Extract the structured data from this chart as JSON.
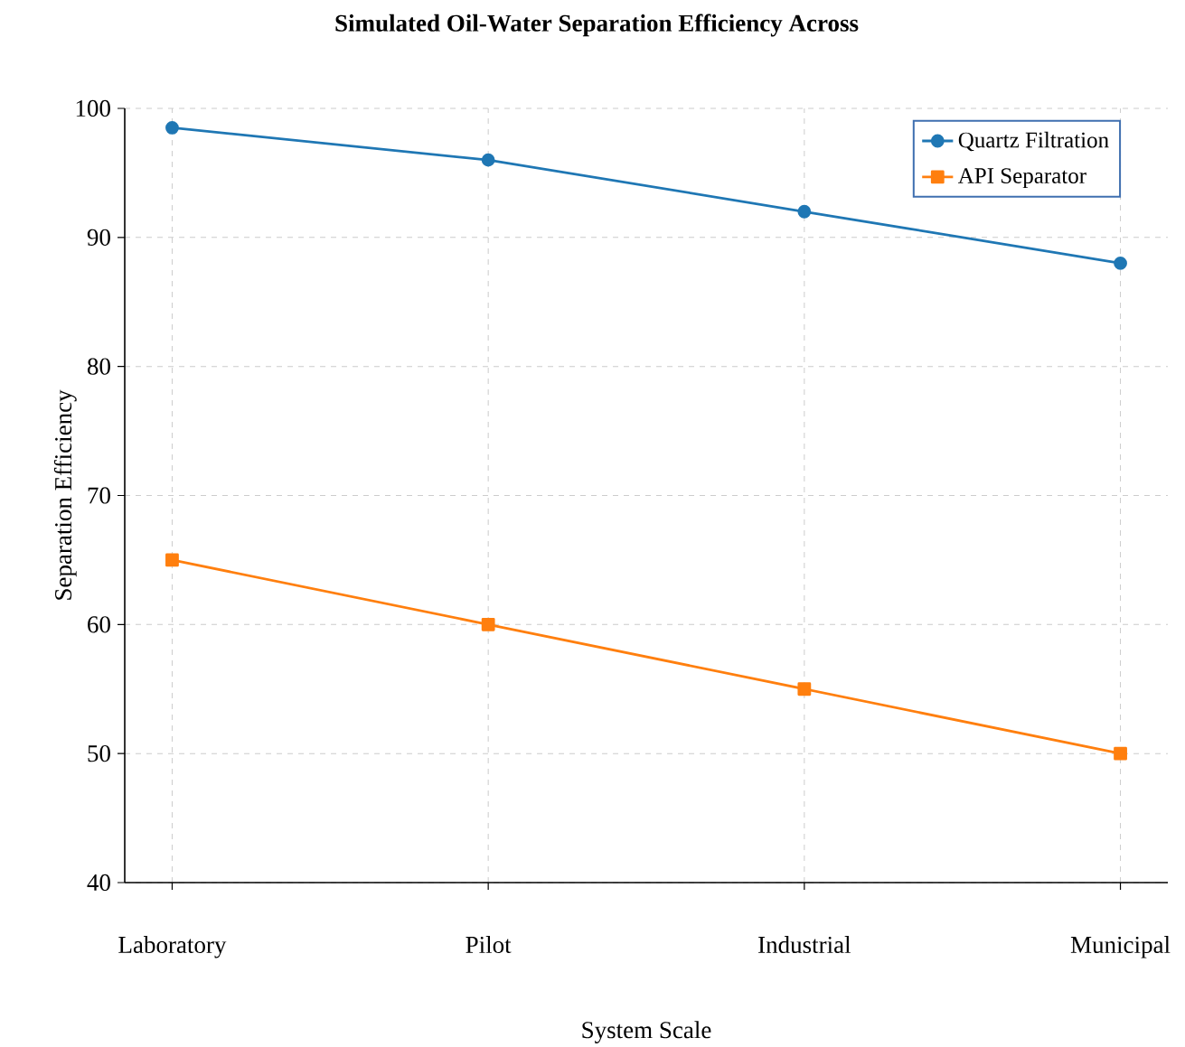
{
  "chart_data": {
    "type": "line",
    "title": "Simulated Oil-Water Separation Efficiency Across",
    "xlabel": "System Scale",
    "ylabel": "Separation Efficiency",
    "categories": [
      "Laboratory",
      "Pilot",
      "Industrial",
      "Municipal"
    ],
    "series": [
      {
        "name": "Quartz Filtration",
        "color": "#1f77b4",
        "marker": "circle",
        "values": [
          98.5,
          96,
          92,
          88
        ]
      },
      {
        "name": "API Separator",
        "color": "#ff7f0e",
        "marker": "square",
        "values": [
          65,
          60,
          55,
          50
        ]
      }
    ],
    "ylim": [
      40,
      100
    ],
    "yticks": [
      40,
      50,
      60,
      70,
      80,
      90,
      100
    ],
    "grid": true,
    "legend": "top right",
    "line_style": "solid"
  }
}
